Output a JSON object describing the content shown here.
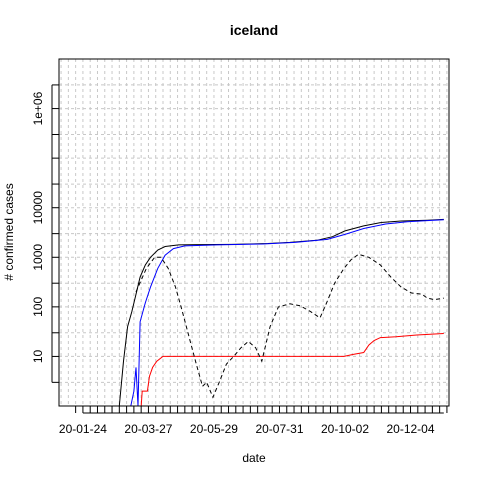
{
  "chart_data": {
    "type": "line",
    "title": "iceland",
    "xlabel": "date",
    "ylabel": "# confirmed cases",
    "y_scale": "log",
    "ylim": [
      1,
      10000000
    ],
    "xlim": [
      "2020-01-01",
      "2021-01-10"
    ],
    "grid": true,
    "x_tick_labels": [
      {
        "date": "2020-01-24",
        "label": "20-01-24"
      },
      {
        "date": "2020-03-27",
        "label": "20-03-27"
      },
      {
        "date": "2020-05-29",
        "label": "20-05-29"
      },
      {
        "date": "2020-07-31",
        "label": "20-07-31"
      },
      {
        "date": "2020-10-02",
        "label": "20-10-02"
      },
      {
        "date": "2020-12-04",
        "label": "20-12-04"
      }
    ],
    "y_tick_labels": [
      {
        "value": 10,
        "label": "10"
      },
      {
        "value": 100,
        "label": "100"
      },
      {
        "value": 1000,
        "label": "1000"
      },
      {
        "value": 10000,
        "label": "10000"
      },
      {
        "value": 1000000,
        "label": "1e+06"
      }
    ],
    "series": [
      {
        "color": "#000000",
        "dash": "solid",
        "points": [
          [
            "2020-02-28",
            1
          ],
          [
            "2020-03-03",
            8
          ],
          [
            "2020-03-07",
            40
          ],
          [
            "2020-03-11",
            80
          ],
          [
            "2020-03-15",
            180
          ],
          [
            "2020-03-19",
            400
          ],
          [
            "2020-03-24",
            700
          ],
          [
            "2020-03-29",
            1000
          ],
          [
            "2020-04-05",
            1400
          ],
          [
            "2020-04-12",
            1650
          ],
          [
            "2020-04-25",
            1780
          ],
          [
            "2020-05-15",
            1800
          ],
          [
            "2020-06-15",
            1820
          ],
          [
            "2020-07-20",
            1900
          ],
          [
            "2020-08-10",
            2000
          ],
          [
            "2020-09-05",
            2200
          ],
          [
            "2020-09-20",
            2600
          ],
          [
            "2020-10-02",
            3400
          ],
          [
            "2020-10-20",
            4300
          ],
          [
            "2020-11-05",
            5000
          ],
          [
            "2020-11-25",
            5400
          ],
          [
            "2020-12-20",
            5600
          ],
          [
            "2021-01-05",
            5800
          ]
        ]
      },
      {
        "color": "#0000ff",
        "dash": "solid",
        "points": [
          [
            "2020-03-10",
            1
          ],
          [
            "2020-03-13",
            2
          ],
          [
            "2020-03-15",
            6
          ],
          [
            "2020-03-17",
            1
          ],
          [
            "2020-03-19",
            50
          ],
          [
            "2020-03-24",
            120
          ],
          [
            "2020-03-29",
            250
          ],
          [
            "2020-04-05",
            600
          ],
          [
            "2020-04-12",
            1100
          ],
          [
            "2020-04-20",
            1500
          ],
          [
            "2020-05-01",
            1700
          ],
          [
            "2020-06-01",
            1780
          ],
          [
            "2020-07-15",
            1850
          ],
          [
            "2020-08-15",
            2000
          ],
          [
            "2020-09-15",
            2300
          ],
          [
            "2020-10-02",
            2900
          ],
          [
            "2020-10-20",
            3800
          ],
          [
            "2020-11-10",
            4700
          ],
          [
            "2020-12-01",
            5200
          ],
          [
            "2020-12-20",
            5500
          ],
          [
            "2021-01-05",
            5700
          ]
        ]
      },
      {
        "color": "#ff0000",
        "dash": "solid",
        "points": [
          [
            "2020-03-10",
            1
          ],
          [
            "2020-03-20",
            1
          ],
          [
            "2020-03-21",
            2
          ],
          [
            "2020-03-26",
            2
          ],
          [
            "2020-03-28",
            4
          ],
          [
            "2020-03-31",
            6
          ],
          [
            "2020-04-04",
            8
          ],
          [
            "2020-04-10",
            10
          ],
          [
            "2020-05-15",
            10
          ],
          [
            "2020-08-01",
            10
          ],
          [
            "2020-10-01",
            10
          ],
          [
            "2020-10-10",
            11
          ],
          [
            "2020-10-20",
            12
          ],
          [
            "2020-10-25",
            17
          ],
          [
            "2020-10-30",
            21
          ],
          [
            "2020-11-05",
            24
          ],
          [
            "2020-11-20",
            25
          ],
          [
            "2020-12-10",
            27
          ],
          [
            "2021-01-05",
            29
          ]
        ]
      },
      {
        "color": "#000000",
        "dash": "dashed",
        "points": [
          [
            "2020-03-15",
            200
          ],
          [
            "2020-03-25",
            600
          ],
          [
            "2020-04-02",
            1000
          ],
          [
            "2020-04-08",
            1000
          ],
          [
            "2020-04-15",
            600
          ],
          [
            "2020-04-22",
            250
          ],
          [
            "2020-04-28",
            90
          ],
          [
            "2020-05-05",
            25
          ],
          [
            "2020-05-12",
            7
          ],
          [
            "2020-05-18",
            2.5
          ],
          [
            "2020-05-22",
            3
          ],
          [
            "2020-05-28",
            1.5
          ],
          [
            "2020-06-03",
            3
          ],
          [
            "2020-06-10",
            7
          ],
          [
            "2020-06-17",
            10
          ],
          [
            "2020-06-24",
            15
          ],
          [
            "2020-07-01",
            20
          ],
          [
            "2020-07-08",
            15
          ],
          [
            "2020-07-14",
            8
          ],
          [
            "2020-07-22",
            40
          ],
          [
            "2020-07-30",
            100
          ],
          [
            "2020-08-10",
            115
          ],
          [
            "2020-08-20",
            105
          ],
          [
            "2020-08-30",
            80
          ],
          [
            "2020-09-08",
            60
          ],
          [
            "2020-09-15",
            130
          ],
          [
            "2020-09-22",
            300
          ],
          [
            "2020-10-01",
            600
          ],
          [
            "2020-10-08",
            900
          ],
          [
            "2020-10-15",
            1150
          ],
          [
            "2020-10-25",
            1000
          ],
          [
            "2020-11-05",
            700
          ],
          [
            "2020-11-15",
            400
          ],
          [
            "2020-11-25",
            250
          ],
          [
            "2020-12-05",
            190
          ],
          [
            "2020-12-15",
            180
          ],
          [
            "2020-12-20",
            150
          ],
          [
            "2020-12-27",
            140
          ],
          [
            "2021-01-05",
            150
          ]
        ]
      }
    ]
  }
}
